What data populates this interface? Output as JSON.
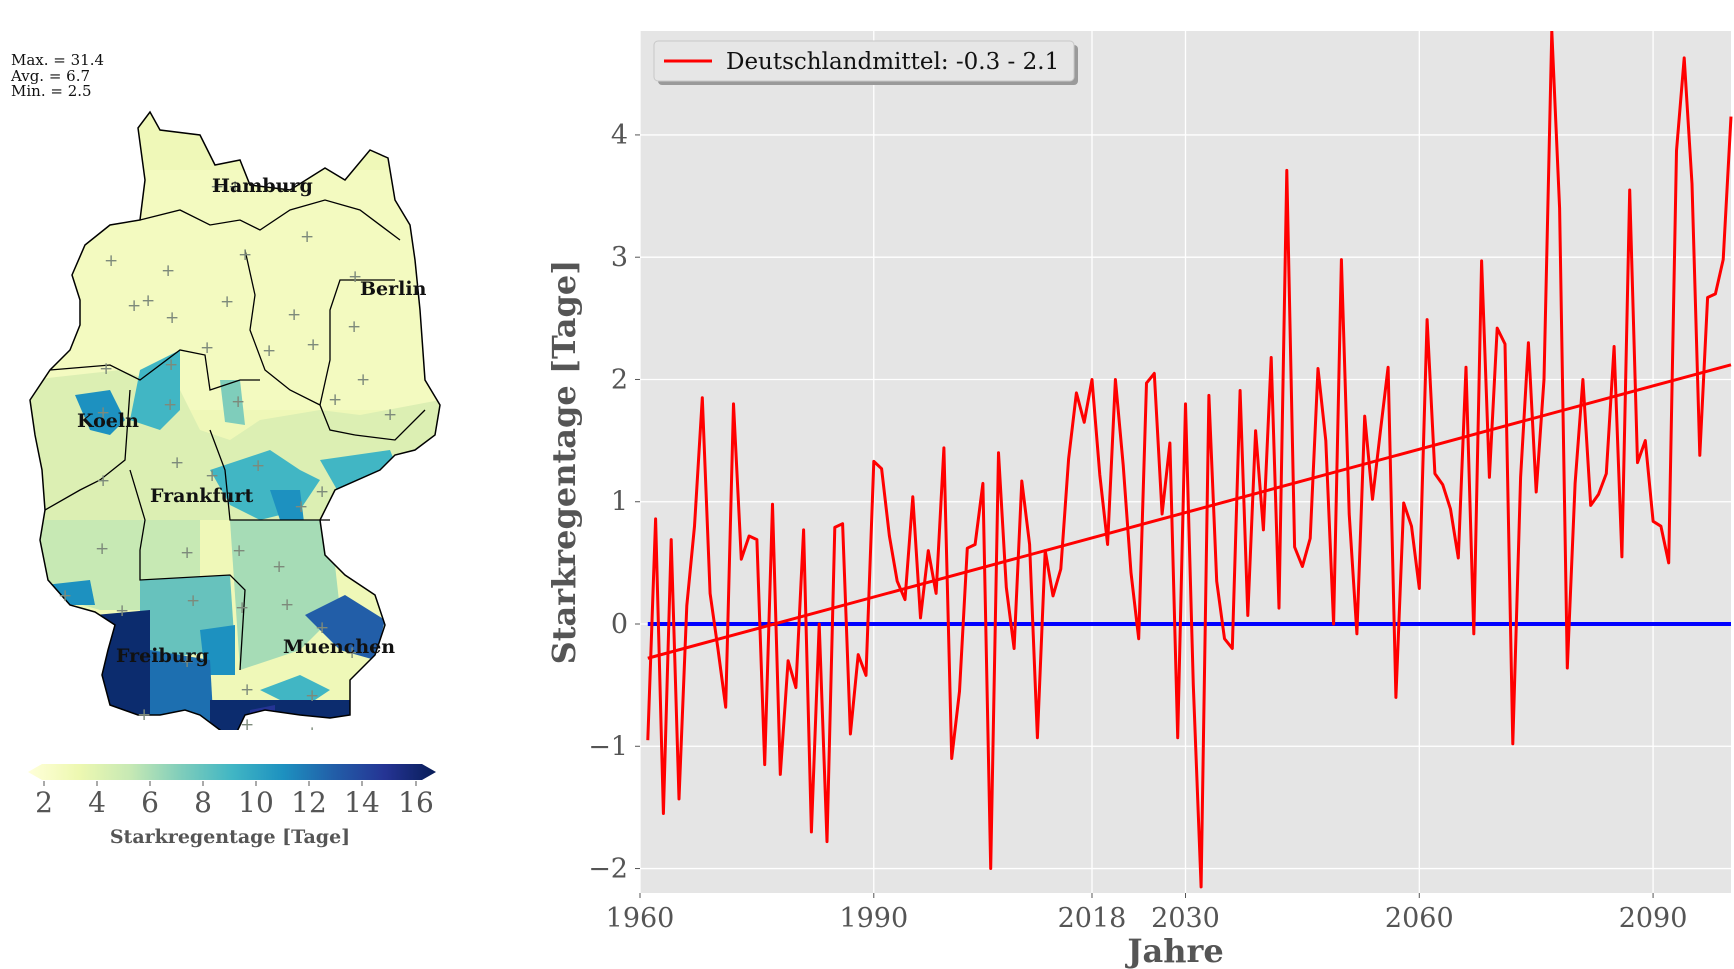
{
  "map": {
    "stats": [
      "Max. = 31.4",
      "Avg. = 6.7",
      "Min. = 2.5"
    ],
    "cities": [
      {
        "name": "Hamburg"
      },
      {
        "name": "Berlin"
      },
      {
        "name": "Koeln"
      },
      {
        "name": "Frankfurt"
      },
      {
        "name": "Freiburg"
      },
      {
        "name": "Muenchen"
      }
    ],
    "colorbar": {
      "label": "Starkregentage [Tage]",
      "ticks": [
        "2",
        "4",
        "6",
        "8",
        "10",
        "12",
        "14",
        "16"
      ],
      "range": [
        1,
        16.5
      ],
      "colormap": [
        "#ffffd9",
        "#edf8b1",
        "#c7e9b4",
        "#7fcdbb",
        "#41b6c4",
        "#1d91c0",
        "#225ea8",
        "#253494",
        "#081d58"
      ],
      "extend": "both"
    }
  },
  "chart_data": {
    "type": "line",
    "title": "Simulation_Starkregentage_1961-2100_Zeitreihe",
    "xlabel": "Jahre",
    "ylabel": "Starkregentage [Tage]",
    "xlim": [
      1960,
      2100
    ],
    "ylim": [
      -2.2,
      4.85
    ],
    "xticks": [
      1960,
      1990,
      2018,
      2030,
      2060,
      2090
    ],
    "yticks": [
      -2,
      -1,
      0,
      1,
      2,
      3,
      4
    ],
    "ytick_labels": [
      "−2",
      "−1",
      "0",
      "1",
      "2",
      "3",
      "4"
    ],
    "grid": true,
    "legend": {
      "position": "top-left",
      "entries": [
        "Deutschlandmittel: -0.3 - 2.1"
      ]
    },
    "series": [
      {
        "name": "Deutschlandmittel",
        "color": "#ff0000",
        "x_start": 1961,
        "values": [
          -0.95,
          0.86,
          -1.55,
          0.69,
          -1.43,
          0.15,
          0.8,
          1.85,
          0.25,
          -0.2,
          -0.68,
          1.8,
          0.53,
          0.72,
          0.69,
          -1.15,
          0.98,
          -1.23,
          -0.3,
          -0.52,
          0.77,
          -1.7,
          0.0,
          -1.78,
          0.79,
          0.82,
          -0.9,
          -0.25,
          -0.42,
          1.33,
          1.27,
          0.72,
          0.35,
          0.2,
          1.04,
          0.05,
          0.6,
          0.25,
          1.44,
          -1.1,
          -0.55,
          0.62,
          0.65,
          1.15,
          -2.0,
          1.4,
          0.3,
          -0.2,
          1.17,
          0.65,
          -0.93,
          0.6,
          0.23,
          0.45,
          1.35,
          1.89,
          1.65,
          2.0,
          1.22,
          0.65,
          2.0,
          1.3,
          0.42,
          -0.12,
          1.97,
          2.05,
          0.9,
          1.48,
          -0.93,
          1.8,
          -0.5,
          -2.15,
          1.87,
          0.35,
          -0.12,
          -0.2,
          1.91,
          0.07,
          1.58,
          0.77,
          2.18,
          0.13,
          3.71,
          0.63,
          0.47,
          0.7,
          2.09,
          1.5,
          0.0,
          2.98,
          0.9,
          -0.08,
          1.7,
          1.02,
          1.57,
          2.1,
          -0.6,
          0.99,
          0.8,
          0.29,
          2.49,
          1.23,
          1.14,
          0.94,
          0.54,
          2.1,
          -0.08,
          2.97,
          1.2,
          2.42,
          2.29,
          -0.98,
          1.2,
          2.3,
          1.08,
          2.0,
          4.85,
          3.4,
          -0.36,
          1.15,
          2.0,
          0.97,
          1.06,
          1.23,
          2.27,
          0.55,
          3.55,
          1.32,
          1.5,
          0.84,
          0.8,
          0.5,
          3.87,
          4.63,
          3.6,
          1.38,
          2.67,
          2.7,
          2.98,
          4.15
        ]
      },
      {
        "name": "Trend",
        "color": "#ff0000",
        "x": [
          1961,
          2100
        ],
        "values": [
          -0.28,
          2.12
        ]
      },
      {
        "name": "Nulllinie",
        "color": "#0000ff",
        "x": [
          1961,
          2100
        ],
        "values": [
          0,
          0
        ]
      }
    ]
  }
}
